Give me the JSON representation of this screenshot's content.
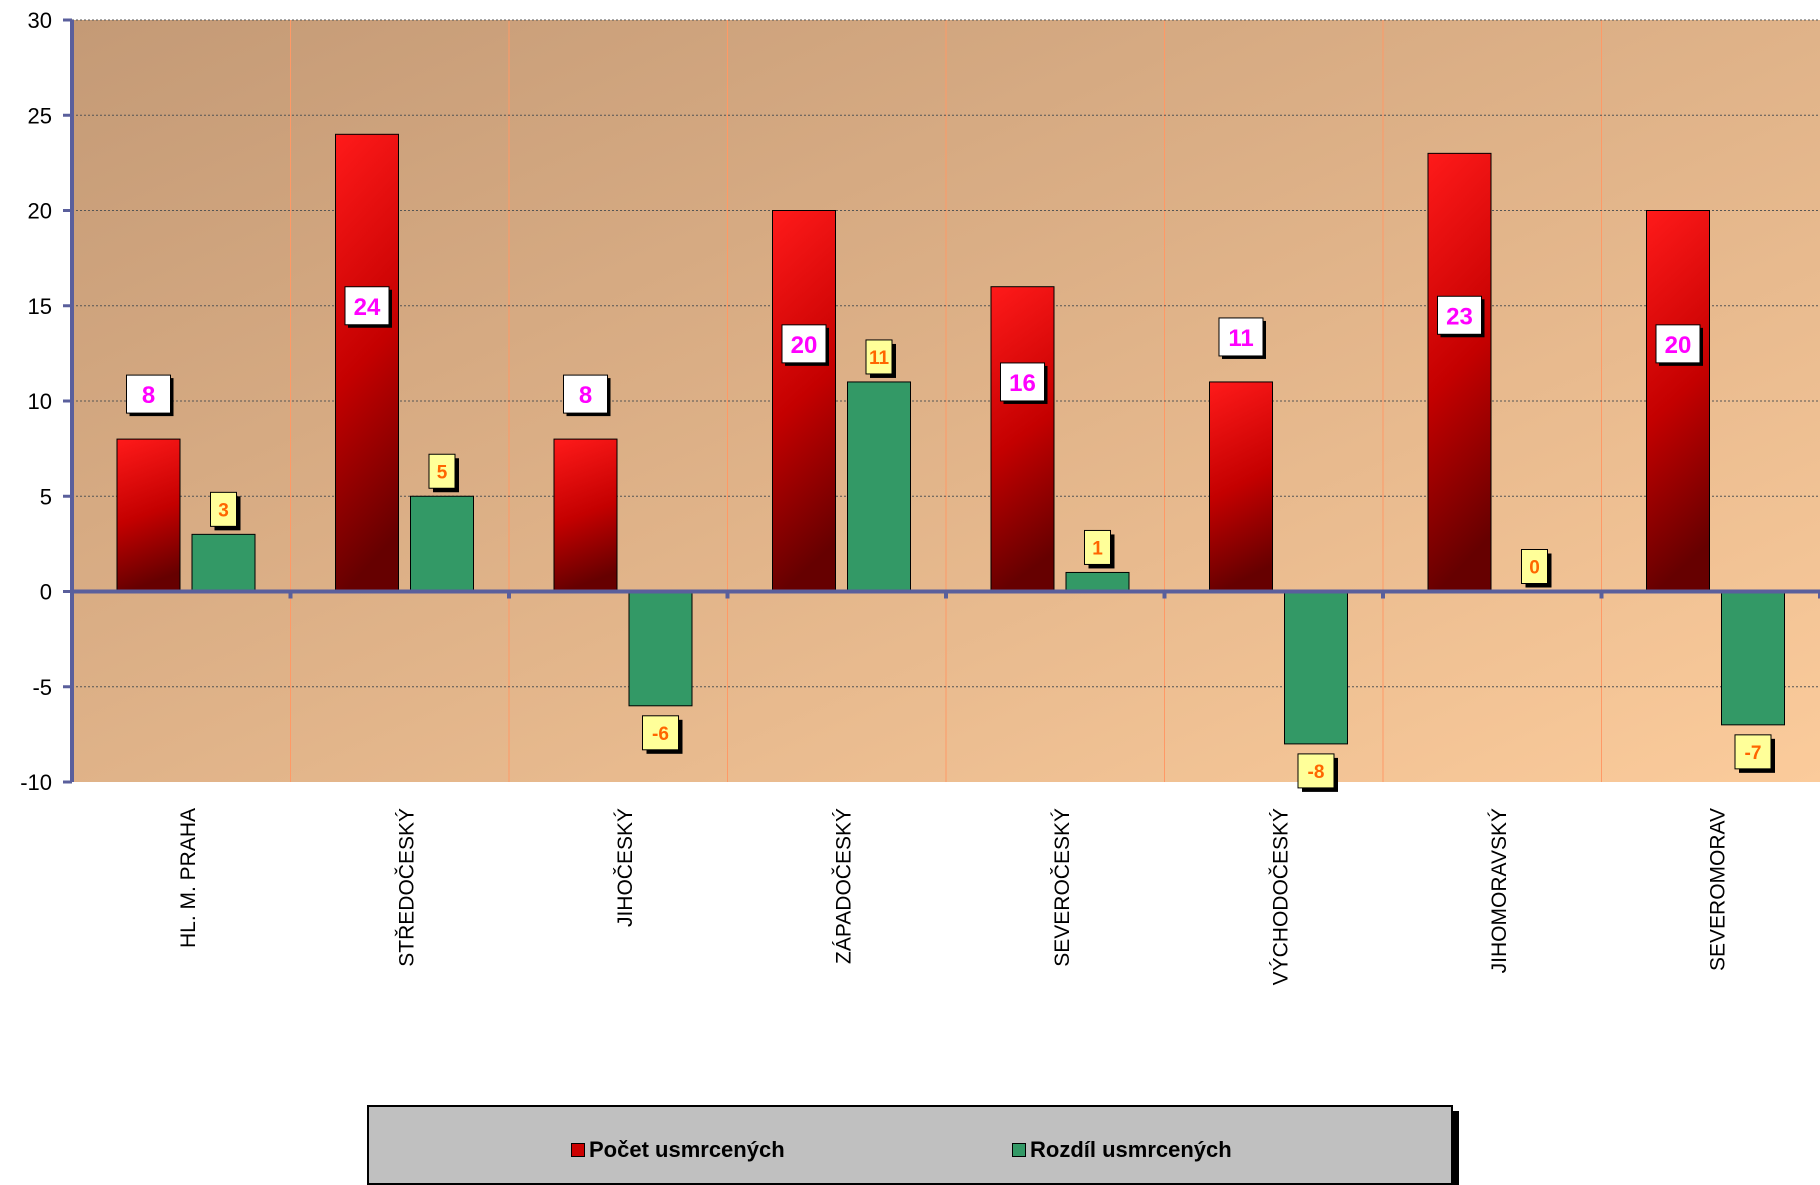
{
  "chart_data": {
    "type": "bar",
    "categories": [
      "HL. M. PRAHA",
      "STŘEDOČESKÝ",
      "JIHOČESKÝ",
      "ZÁPADOČESKÝ",
      "SEVEROČESKÝ",
      "VÝCHODOČESKÝ",
      "JIHOMORAVSKÝ",
      "SEVEROMORAV"
    ],
    "series": [
      {
        "name": "Počet usmrcených",
        "values": [
          8,
          24,
          8,
          20,
          16,
          11,
          23,
          20
        ],
        "color": "#cc0000"
      },
      {
        "name": "Rozdíl usmrcených",
        "values": [
          3,
          5,
          -6,
          11,
          1,
          -8,
          0,
          -7
        ],
        "color": "#339966"
      }
    ],
    "ylim": [
      -10,
      30
    ],
    "yticks": [
      "30",
      "25",
      "20",
      "15",
      "10",
      "5",
      "0",
      "-5",
      "-10"
    ],
    "grid": true,
    "legend_position": "bottom",
    "data_labels": true,
    "title": "",
    "xlabel": "",
    "ylabel": ""
  },
  "colors": {
    "plot_bg_top": "#c49a76",
    "plot_bg_bottom": "#fbcb9b",
    "red_bar_light": "#ff1a1a",
    "red_bar_dark": "#660000",
    "green_bar": "#339966",
    "axis": "#5a5f9c",
    "label_pink": "#ff00ff",
    "label_orange": "#ff6600",
    "label_box_yellow": "#ffff99"
  }
}
